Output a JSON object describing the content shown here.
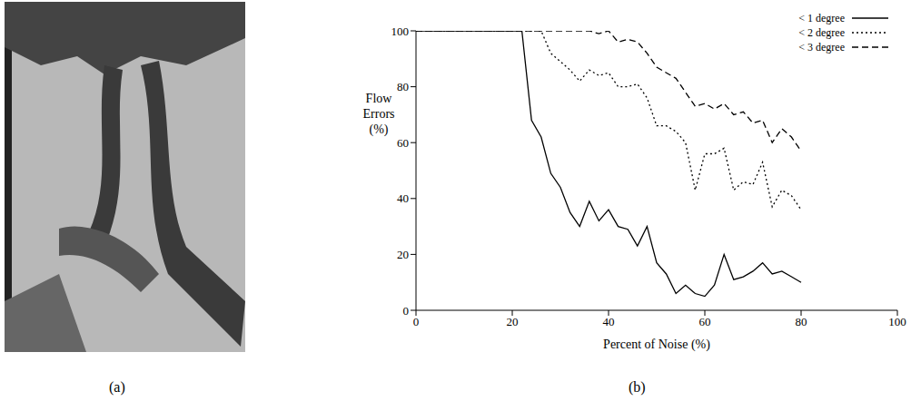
{
  "panel_labels": [
    "(a)",
    "(b)"
  ],
  "chart_data": {
    "type": "line",
    "x_label": "Percent of Noise (%)",
    "y_label": "Flow Errors (%)",
    "x": [
      0,
      2,
      4,
      6,
      8,
      10,
      12,
      14,
      16,
      18,
      20,
      22,
      24,
      26,
      28,
      30,
      32,
      34,
      36,
      38,
      40,
      42,
      44,
      46,
      48,
      50,
      52,
      54,
      56,
      58,
      60,
      62,
      64,
      66,
      68,
      70,
      72,
      74,
      76,
      78,
      80
    ],
    "series": [
      {
        "name": "< 1 degree",
        "color": "#000000",
        "line_style": "solid",
        "values": [
          100,
          100,
          100,
          100,
          100,
          100,
          100,
          100,
          100,
          100,
          100,
          100,
          68,
          62,
          49,
          44,
          35,
          30,
          39,
          32,
          36,
          30,
          29,
          23,
          30,
          17,
          13,
          6,
          9,
          6,
          5,
          9,
          20,
          11,
          12,
          14,
          17,
          13,
          14,
          12,
          10
        ]
      },
      {
        "name": "< 2 degree",
        "color": "#000000",
        "line_style": "dotted",
        "values": [
          100,
          100,
          100,
          100,
          100,
          100,
          100,
          100,
          100,
          100,
          100,
          100,
          100,
          100,
          92,
          89,
          86,
          82,
          86,
          84,
          85,
          80,
          80,
          81,
          76,
          66,
          66,
          64,
          60,
          43,
          56,
          56,
          58,
          43,
          46,
          45,
          53,
          37,
          43,
          41,
          36
        ]
      },
      {
        "name": "< 3 degree",
        "color": "#000000",
        "line_style": "dashed",
        "values": [
          100,
          100,
          100,
          100,
          100,
          100,
          100,
          100,
          100,
          100,
          100,
          100,
          100,
          100,
          100,
          100,
          100,
          100,
          100,
          99,
          100,
          96,
          97,
          96,
          92,
          87,
          85,
          83,
          78,
          73,
          74,
          72,
          74,
          70,
          71,
          67,
          68,
          60,
          65,
          62,
          57
        ]
      }
    ],
    "xlim": [
      0,
      100
    ],
    "xticks": [
      0,
      20,
      40,
      60,
      80,
      100
    ],
    "ylim": [
      0,
      100
    ],
    "yticks": [
      0,
      20,
      40,
      60,
      80,
      100
    ],
    "grid": false,
    "legend": "top-right"
  }
}
